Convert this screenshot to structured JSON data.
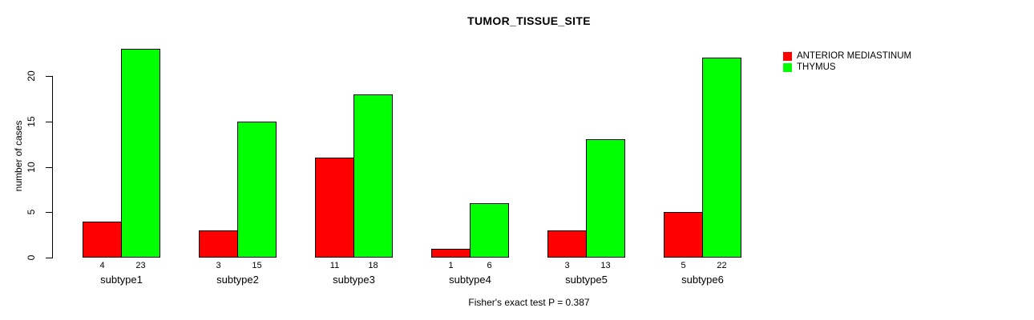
{
  "page": {
    "background_color": "#ffffff",
    "text_color": "#000000"
  },
  "chart_data": {
    "type": "bar",
    "title": "TUMOR_TISSUE_SITE",
    "xlabel": "",
    "ylabel": "number of cases",
    "caption": "Fisher's exact test P = 0.387",
    "categories": [
      "subtype1",
      "subtype2",
      "subtype3",
      "subtype4",
      "subtype5",
      "subtype6"
    ],
    "series": [
      {
        "name": "ANTERIOR MEDIASTINUM",
        "color": "#ff0000",
        "values": [
          4,
          3,
          11,
          1,
          3,
          5
        ]
      },
      {
        "name": "THYMUS",
        "color": "#00ff00",
        "values": [
          23,
          15,
          18,
          6,
          13,
          22
        ]
      }
    ],
    "bar_value_labels": [
      [
        "4",
        "23"
      ],
      [
        "3",
        "15"
      ],
      [
        "11",
        "18"
      ],
      [
        "1",
        "6"
      ],
      [
        "3",
        "13"
      ],
      [
        "5",
        "22"
      ]
    ],
    "yticks": [
      0,
      5,
      10,
      15,
      20
    ],
    "ylim": [
      0,
      23
    ],
    "grid": false,
    "legend_position": "top-right",
    "bar_border_color": "#000000",
    "axis_color": "#000000"
  }
}
